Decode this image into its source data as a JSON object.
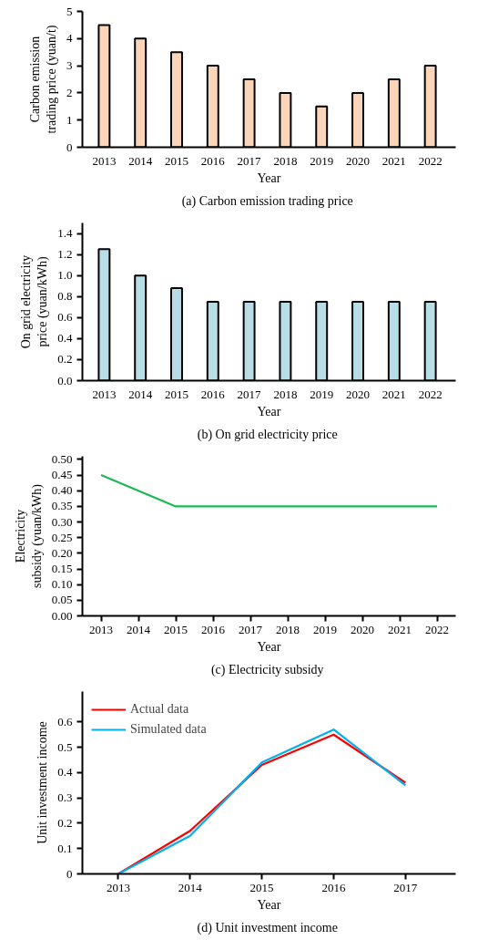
{
  "chart_data": [
    {
      "type": "bar",
      "title": "(a)  Carbon emission trading price",
      "xlabel": "Year",
      "ylabel": "Carbon emission trading price (yuan/t)",
      "categories": [
        "2013",
        "2014",
        "2015",
        "2016",
        "2017",
        "2018",
        "2019",
        "2020",
        "2021",
        "2022"
      ],
      "values": [
        4.5,
        4.0,
        3.5,
        3.0,
        2.5,
        2.0,
        1.5,
        2.0,
        2.5,
        3.0
      ],
      "color": "#fad5b9",
      "ylim": [
        0,
        5
      ],
      "yticks": [
        0,
        1,
        2,
        3,
        4,
        5
      ],
      "grid": false,
      "legend": false
    },
    {
      "type": "bar",
      "title": "(b)  On grid electricity price",
      "xlabel": "Year",
      "ylabel": "On grid electricity price (yuan/kWh)",
      "categories": [
        "2013",
        "2014",
        "2015",
        "2016",
        "2017",
        "2018",
        "2019",
        "2020",
        "2021",
        "2022"
      ],
      "values": [
        1.25,
        1.0,
        0.88,
        0.75,
        0.75,
        0.75,
        0.75,
        0.75,
        0.75,
        0.75
      ],
      "color": "#b9dde6",
      "ylim": [
        0,
        1.5
      ],
      "yticks": [
        {
          "value": 0,
          "label": "0.0"
        },
        {
          "value": 0.2,
          "label": "0.2"
        },
        {
          "value": 0.4,
          "label": "0.4"
        },
        {
          "value": 0.6,
          "label": "0.6"
        },
        {
          "value": 0.8,
          "label": "0.8"
        },
        {
          "value": 1.0,
          "label": "1.0"
        },
        {
          "value": 1.2,
          "label": "1.2"
        },
        {
          "value": 1.4,
          "label": "1.4"
        }
      ],
      "grid": false,
      "legend": false
    },
    {
      "type": "line",
      "title": "(c)  Electricity subsidy",
      "xlabel": "Year",
      "ylabel": "Electricity subsidy (yuan/kWh)",
      "x": [
        2013,
        2015,
        2022
      ],
      "values": [
        0.45,
        0.35,
        0.35
      ],
      "color": "#1db954",
      "xlim": [
        2012.5,
        2022.5
      ],
      "xticks": [
        2013,
        2014,
        2015,
        2016,
        2017,
        2018,
        2019,
        2020,
        2021,
        2022
      ],
      "ylim": [
        0,
        0.51
      ],
      "yticks": [
        {
          "value": 0,
          "label": "0.00"
        },
        {
          "value": 0.05,
          "label": "0.05"
        },
        {
          "value": 0.1,
          "label": "0.10"
        },
        {
          "value": 0.15,
          "label": "0.15"
        },
        {
          "value": 0.2,
          "label": "0.20"
        },
        {
          "value": 0.25,
          "label": "0.25"
        },
        {
          "value": 0.3,
          "label": "0.30"
        },
        {
          "value": 0.35,
          "label": "0.35"
        },
        {
          "value": 0.4,
          "label": "0.40"
        },
        {
          "value": 0.45,
          "label": "0.45"
        },
        {
          "value": 0.5,
          "label": "0.50"
        }
      ],
      "grid": false,
      "legend": false,
      "marker": "none",
      "line_style": "solid"
    },
    {
      "type": "line",
      "title": "(d)  Unit investment income",
      "xlabel": "Year",
      "ylabel": "Unit investment income",
      "x": [
        2013,
        2014,
        2015,
        2016,
        2017
      ],
      "series": [
        {
          "name": "Actual data",
          "color": "#ff0000",
          "values": [
            0,
            0.17,
            0.43,
            0.55,
            0.36
          ]
        },
        {
          "name": "Simulated data",
          "color": "#00b0f0",
          "values": [
            0,
            0.15,
            0.44,
            0.57,
            0.35
          ]
        }
      ],
      "xlim": [
        2012.5,
        2017.7
      ],
      "xticks": [
        2013,
        2014,
        2015,
        2016,
        2017
      ],
      "ylim": [
        0,
        0.72
      ],
      "yticks": [
        0,
        0.1,
        0.2,
        0.3,
        0.4,
        0.5,
        0.6
      ],
      "grid": false,
      "legend": "top left",
      "marker": "none",
      "line_style": "solid"
    }
  ]
}
